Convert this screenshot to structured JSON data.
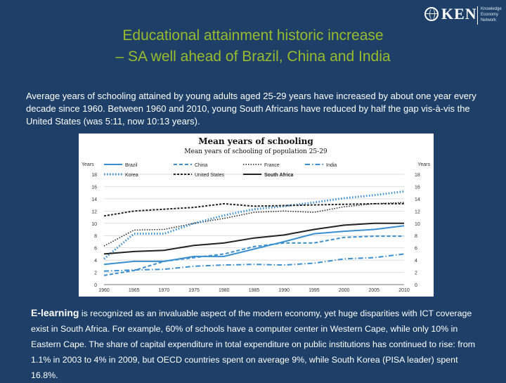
{
  "logo": {
    "text": "KEN",
    "sub": [
      "Knowledge",
      "Economy",
      "Network"
    ]
  },
  "title": {
    "line1": "Educational attainment historic increase",
    "line2": "– SA well ahead of Brazil, China and India"
  },
  "intro": "Average years of schooling attained by young adults aged 25-29 years have increased by about one year every decade since 1960. Between 1960 and 2010, young South Africans have reduced by half the gap vis-à-vis the United States (was 5:11, now 10:13 years).",
  "chart_data": {
    "type": "line",
    "title": "Mean years of schooling",
    "subtitle": "Mean years of schooling of population 25-29",
    "ylabel_left": "Years",
    "ylabel_right": "Years",
    "ylim": [
      0,
      18
    ],
    "yticks": [
      0,
      2,
      4,
      6,
      8,
      10,
      12,
      14,
      16,
      18
    ],
    "x": [
      1960,
      1965,
      1970,
      1975,
      1980,
      1985,
      1990,
      1995,
      2000,
      2005,
      2010
    ],
    "grid": true,
    "legend_position": "top",
    "series": [
      {
        "name": "Brazil",
        "color": "#3a8fd0",
        "dash": "",
        "width": 2,
        "values": [
          3.3,
          3.8,
          3.8,
          4.6,
          4.6,
          5.8,
          7.0,
          8.3,
          8.7,
          9.0,
          9.6
        ]
      },
      {
        "name": "China",
        "color": "#3a8fd0",
        "dash": "5,3",
        "width": 2,
        "values": [
          1.5,
          2.3,
          3.8,
          4.4,
          5.0,
          6.2,
          6.8,
          6.8,
          7.7,
          7.9,
          7.9
        ]
      },
      {
        "name": "France",
        "color": "#222222",
        "dash": "1.5,2",
        "width": 1.5,
        "values": [
          6.3,
          8.9,
          9.0,
          10.0,
          10.8,
          11.8,
          12.0,
          11.8,
          12.7,
          13.2,
          13.4
        ]
      },
      {
        "name": "India",
        "color": "#3a8fd0",
        "dash": "7,3,1.5,3",
        "width": 2,
        "values": [
          2.2,
          2.4,
          2.5,
          3.0,
          3.2,
          3.3,
          3.2,
          3.5,
          4.2,
          4.4,
          5.0
        ]
      },
      {
        "name": "Korea",
        "color": "#3a8fd0",
        "dash": "1.5,2.5",
        "width": 3,
        "values": [
          4.2,
          8.3,
          8.3,
          10.0,
          11.3,
          12.3,
          12.8,
          13.4,
          14.1,
          14.6,
          15.2
        ]
      },
      {
        "name": "United States",
        "color": "#222222",
        "dash": "3,2",
        "width": 2,
        "values": [
          11.2,
          12.0,
          12.3,
          12.6,
          13.2,
          12.8,
          12.9,
          13.0,
          13.1,
          13.2,
          13.2
        ]
      },
      {
        "name": "South Africa",
        "color": "#222222",
        "dash": "",
        "width": 2,
        "values": [
          5.0,
          5.4,
          5.6,
          6.4,
          6.8,
          7.6,
          8.1,
          9.0,
          9.7,
          10.0,
          10.0
        ]
      }
    ]
  },
  "bottom": {
    "lead": "E-learning",
    "text": " is recognized as an invaluable aspect of the modern economy, yet  huge disparities with ICT coverage exist in South Africa. For example, 60% of schools have a computer center in Western Cape, while only 10% in Eastern Cape. The share of capital expenditure in total expenditure on public institutions has continued to rise: from 1.1% in 2003 to 4% in 2009, but OECD countries spent on average 9%, while South Korea (PISA leader) spent 16.8%."
  }
}
